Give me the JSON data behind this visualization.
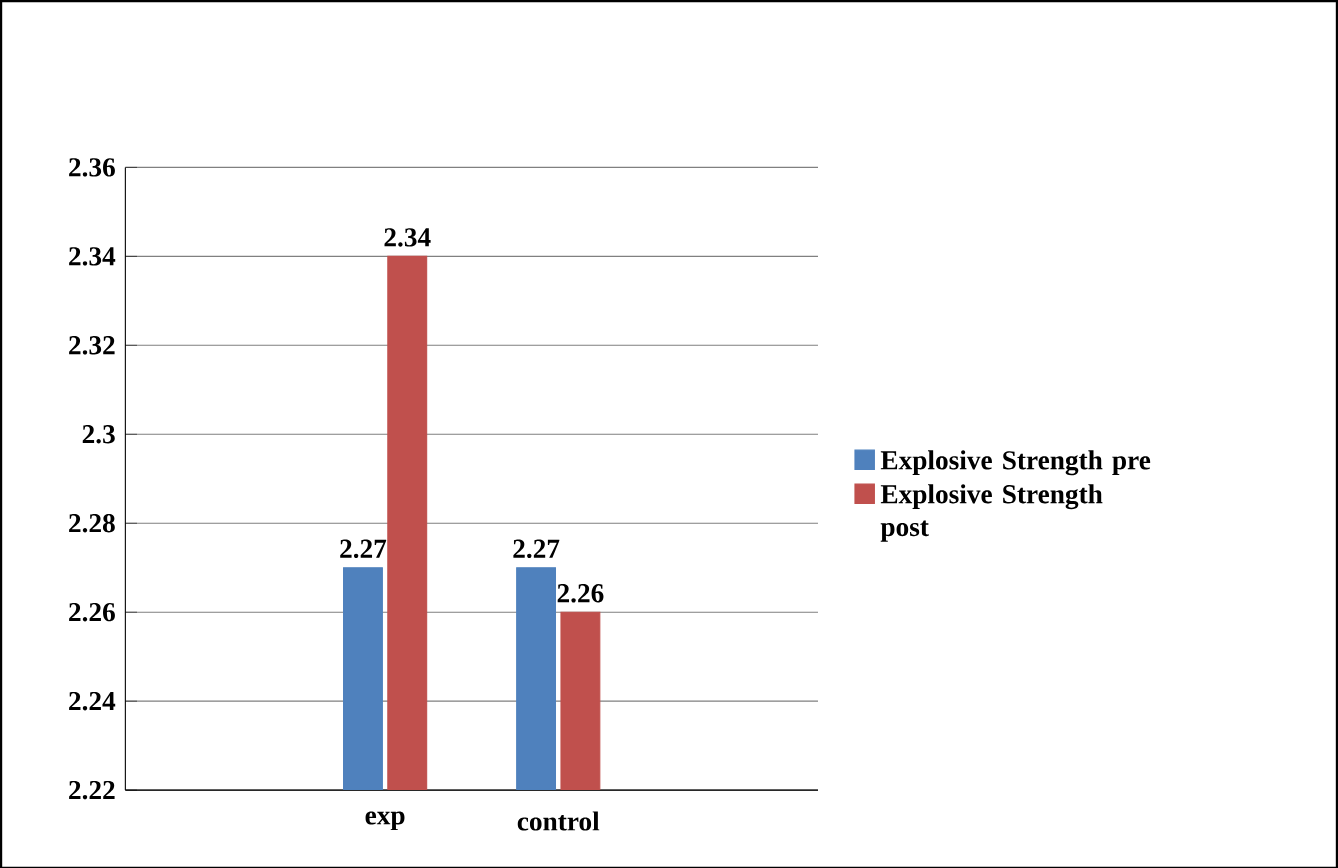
{
  "chart_data": {
    "type": "bar",
    "categories": [
      "exp",
      "control"
    ],
    "series": [
      {
        "name": "Explosive Strength pre",
        "color": "#4f81bd",
        "values": [
          2.27,
          2.27
        ]
      },
      {
        "name": "Explosive Strength post",
        "color": "#c0504d",
        "values": [
          2.34,
          2.26
        ]
      }
    ],
    "ylim": [
      2.22,
      2.36
    ],
    "yticks": [
      2.22,
      2.24,
      2.26,
      2.28,
      2.3,
      2.32,
      2.34,
      2.36
    ],
    "grid": "y",
    "legend": "right",
    "data_labels": true
  }
}
